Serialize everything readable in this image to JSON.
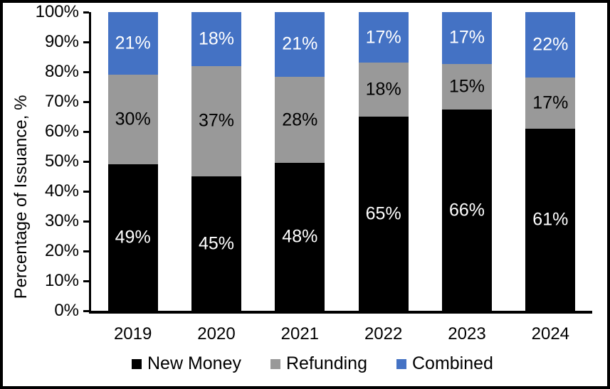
{
  "chart_data": {
    "type": "bar",
    "stacked": true,
    "title": "",
    "xlabel": "",
    "ylabel": "Percentage of Issuance, %",
    "ylim": [
      0,
      100
    ],
    "ytick_step": 10,
    "ytick_suffix": "%",
    "grid": false,
    "legend_position": "bottom",
    "categories": [
      "2019",
      "2020",
      "2021",
      "2022",
      "2023",
      "2024"
    ],
    "series": [
      {
        "name": "New Money",
        "color": "#000000",
        "label_color": "#ffffff",
        "values": [
          49,
          45,
          48,
          65,
          66,
          61
        ]
      },
      {
        "name": "Refunding",
        "color": "#999999",
        "label_color": "#000000",
        "values": [
          30,
          37,
          28,
          18,
          15,
          17
        ]
      },
      {
        "name": "Combined",
        "color": "#4472C4",
        "label_color": "#ffffff",
        "values": [
          21,
          18,
          21,
          17,
          17,
          22
        ]
      }
    ],
    "data_label_suffix": "%"
  },
  "colors": {
    "axis": "#000000",
    "background": "#ffffff",
    "frame_border": "#000000"
  }
}
